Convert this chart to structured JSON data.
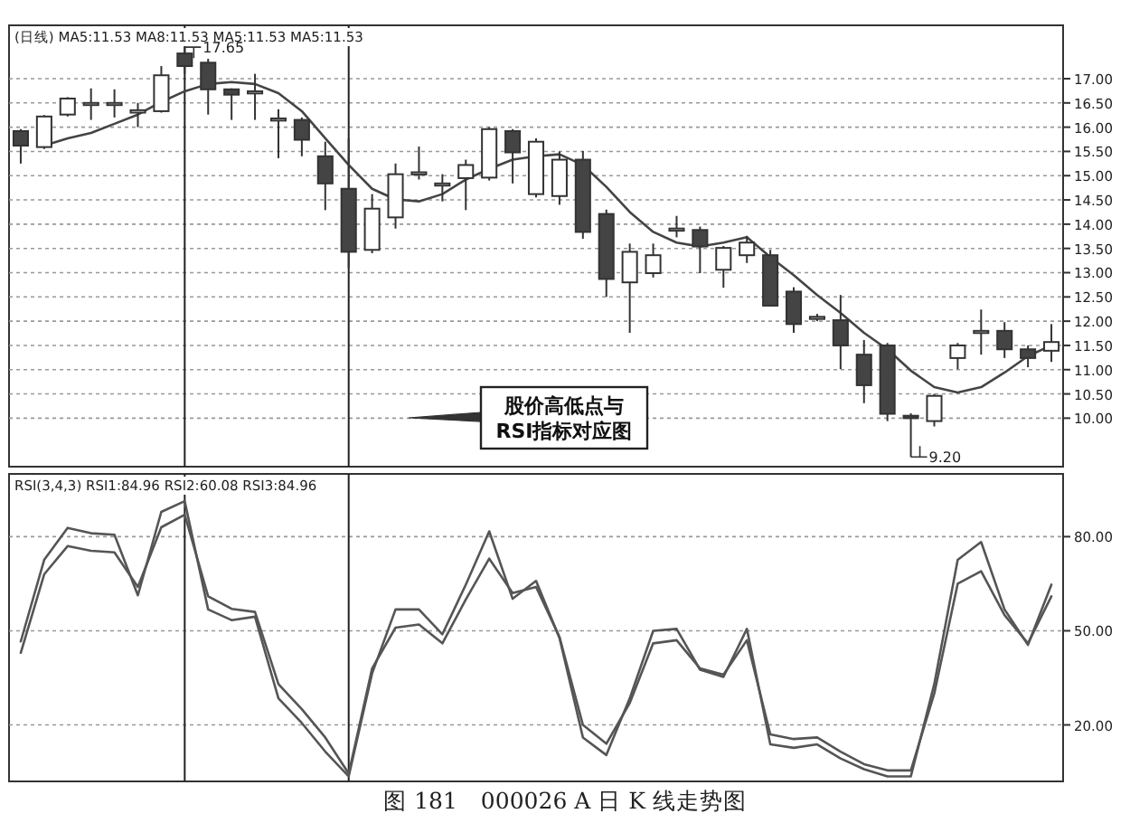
{
  "chart_data": [
    {
      "type": "candlestick",
      "title": "(日线) MA5:11.53 MA8:11.53 MA5:11.53 MA5:11.53",
      "categories": [
        null,
        null,
        null,
        null,
        null,
        null,
        null,
        null,
        null,
        null,
        null,
        null,
        null,
        null,
        null,
        null,
        null,
        null,
        null,
        null,
        null,
        null,
        null,
        null,
        null,
        null,
        null,
        null,
        null,
        null,
        null,
        null,
        null,
        null,
        null,
        null,
        null,
        null,
        null,
        null,
        null,
        null,
        null,
        null,
        null
      ],
      "ohlc": [
        [
          15.92,
          15.96,
          15.25,
          15.62
        ],
        [
          15.59,
          16.25,
          15.55,
          16.22
        ],
        [
          16.26,
          16.62,
          16.22,
          16.59
        ],
        [
          16.5,
          16.8,
          16.15,
          16.5
        ],
        [
          16.5,
          16.78,
          16.2,
          16.5
        ],
        [
          16.3,
          16.5,
          16.0,
          16.35
        ],
        [
          16.33,
          17.26,
          16.3,
          17.07
        ],
        [
          17.52,
          17.65,
          17.1,
          17.26
        ],
        [
          17.33,
          17.41,
          16.26,
          16.78
        ],
        [
          16.78,
          16.8,
          16.15,
          16.67
        ],
        [
          16.74,
          17.1,
          16.15,
          16.74
        ],
        [
          16.18,
          16.37,
          15.36,
          16.18
        ],
        [
          16.15,
          16.2,
          15.4,
          15.74
        ],
        [
          15.4,
          15.7,
          14.29,
          14.84
        ],
        [
          14.73,
          15.77,
          13.1,
          13.43
        ],
        [
          13.47,
          14.62,
          13.4,
          14.32
        ],
        [
          14.14,
          15.25,
          13.91,
          15.03
        ],
        [
          15.07,
          15.6,
          14.92,
          15.07
        ],
        [
          14.84,
          15.03,
          14.47,
          14.84
        ],
        [
          14.95,
          15.33,
          14.29,
          15.22
        ],
        [
          14.96,
          16.0,
          14.9,
          15.96
        ],
        [
          15.92,
          15.96,
          14.84,
          15.48
        ],
        [
          14.62,
          15.77,
          14.55,
          15.7
        ],
        [
          14.58,
          15.5,
          14.4,
          15.33
        ],
        [
          15.33,
          15.51,
          13.7,
          13.84
        ],
        [
          14.21,
          14.3,
          12.5,
          12.87
        ],
        [
          12.8,
          13.6,
          11.76,
          13.43
        ],
        [
          12.99,
          13.6,
          12.9,
          13.36
        ],
        [
          13.91,
          14.17,
          13.73,
          13.91
        ],
        [
          13.88,
          13.95,
          12.99,
          13.54
        ],
        [
          13.06,
          13.55,
          12.69,
          13.51
        ],
        [
          13.36,
          13.76,
          13.2,
          13.62
        ],
        [
          13.36,
          13.47,
          12.3,
          12.32
        ],
        [
          12.61,
          12.7,
          11.76,
          11.94
        ],
        [
          12.09,
          12.15,
          12.0,
          12.09
        ],
        [
          12.02,
          12.54,
          11.01,
          11.5
        ],
        [
          11.31,
          11.61,
          10.31,
          10.68
        ],
        [
          11.5,
          11.55,
          9.94,
          10.09
        ],
        [
          10.05,
          10.1,
          9.2,
          10.0
        ],
        [
          9.94,
          10.5,
          9.83,
          10.46
        ],
        [
          11.24,
          11.55,
          11.01,
          11.5
        ],
        [
          11.8,
          12.24,
          11.31,
          11.8
        ],
        [
          11.8,
          11.98,
          11.24,
          11.42
        ],
        [
          11.42,
          11.5,
          11.05,
          11.24
        ],
        [
          11.39,
          11.94,
          11.16,
          11.57
        ]
      ],
      "series": [
        {
          "type": "line",
          "color": "#444444",
          "values": [
            null,
            15.62,
            15.77,
            15.88,
            16.07,
            16.26,
            16.52,
            16.74,
            16.89,
            16.93,
            16.89,
            16.7,
            16.33,
            15.77,
            15.22,
            14.73,
            14.51,
            14.47,
            14.62,
            14.92,
            15.14,
            15.33,
            15.4,
            15.44,
            15.22,
            14.77,
            14.25,
            13.84,
            13.62,
            13.54,
            13.62,
            13.73,
            13.32,
            12.95,
            12.54,
            12.17,
            11.76,
            11.42,
            10.98,
            10.64,
            10.53,
            10.64,
            10.94,
            11.28,
            11.5
          ]
        }
      ],
      "ylim": [
        9.0,
        18.1
      ],
      "yticks": [
        {
          "value": 10,
          "label": "10.00"
        },
        {
          "value": 10.5,
          "label": "10.50"
        },
        {
          "value": 11,
          "label": "11.00"
        },
        {
          "value": 11.5,
          "label": "11.50"
        },
        {
          "value": 12,
          "label": "12.00"
        },
        {
          "value": 12.5,
          "label": "12.50"
        },
        {
          "value": 13,
          "label": "13.00"
        },
        {
          "value": 13.5,
          "label": "13.50"
        },
        {
          "value": 14,
          "label": "14.00"
        },
        {
          "value": 14.5,
          "label": "14.50"
        },
        {
          "value": 15,
          "label": "15.00"
        },
        {
          "value": 15.5,
          "label": "15.50"
        },
        {
          "value": 16,
          "label": "16.00"
        },
        {
          "value": 16.5,
          "label": "16.50"
        },
        {
          "value": 17,
          "label": "17.00"
        }
      ],
      "grid": "y",
      "tick_labels": "y",
      "annotations": [
        "17.65",
        "9.20",
        "股价高低点与\nRSI指标对应图"
      ]
    },
    {
      "type": "line",
      "title": "RSI(3,4,3) RSI1:84.96 RSI2:60.08 RSI3:84.96",
      "categories": [
        null,
        null,
        null,
        null,
        null,
        null,
        null,
        null,
        null,
        null,
        null,
        null,
        null,
        null,
        null,
        null,
        null,
        null,
        null,
        null,
        null,
        null,
        null,
        null,
        null,
        null,
        null,
        null,
        null,
        null,
        null,
        null,
        null,
        null,
        null,
        null,
        null,
        null,
        null,
        null,
        null,
        null,
        null,
        null,
        null
      ],
      "series": [
        {
          "color": "#555555",
          "values": [
            46.6,
            72.6,
            82.8,
            81.1,
            80.6,
            61.3,
            87.9,
            91.3,
            56.8,
            53.4,
            54.5,
            28.5,
            20.6,
            11.5,
            3.6,
            36.4,
            56.8,
            56.8,
            48.9,
            64.7,
            81.7,
            60.2,
            65.9,
            47.7,
            16.0,
            10.4,
            28.5,
            50.0,
            50.6,
            37.6,
            35.3,
            50.6,
            13.8,
            12.7,
            13.8,
            9.3,
            5.9,
            3.6,
            3.6,
            33.0,
            72.6,
            78.3,
            56.8,
            45.5,
            64.7
          ]
        },
        {
          "color": "#555555",
          "values": [
            43,
            68,
            77,
            75.5,
            75,
            64,
            83,
            87,
            61,
            57,
            56,
            33,
            25,
            16,
            4.5,
            38,
            51,
            52,
            46,
            60,
            73,
            62,
            64,
            48,
            20,
            14,
            27,
            46,
            47,
            38,
            36,
            47,
            17,
            15.5,
            16,
            11.5,
            7.5,
            5.5,
            5.5,
            30,
            65,
            69,
            55,
            46,
            61
          ]
        }
      ],
      "ylim": [
        2,
        100
      ],
      "yticks": [
        {
          "value": 20,
          "label": "20.00"
        },
        {
          "value": 50,
          "label": "50.00"
        },
        {
          "value": 80,
          "label": "80.00"
        }
      ],
      "grid": "y",
      "tick_labels": "y",
      "annotations": [
        "图 181　000026 A 日 K 线走势图"
      ]
    }
  ]
}
